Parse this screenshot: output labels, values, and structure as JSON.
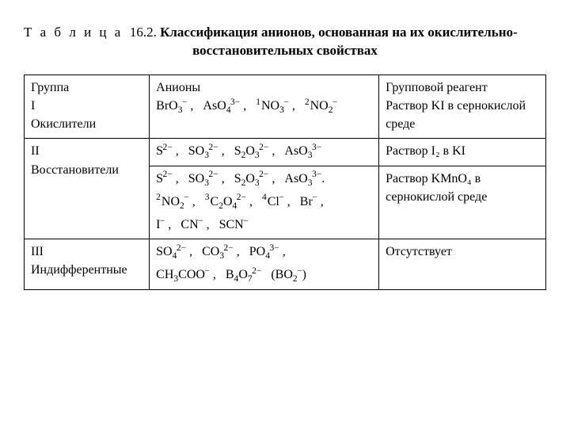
{
  "title": {
    "prefix": "Т а б л и ц а",
    "number": "16.2.",
    "main1": "Классификация анионов, основанная на их окислительно-",
    "main2": "восстановительных свойствах"
  },
  "header": {
    "col1": "Группа",
    "col2": "Анионы",
    "col3": "Групповой реагент"
  },
  "groups": {
    "g1": {
      "label1": "I",
      "label2": "Окислители",
      "reagent": "Раствор KI в сернокислой среде",
      "anions": [
        {
          "pre": "",
          "base": "BrO",
          "sub": "3",
          "sup": "−"
        },
        {
          "pre": "",
          "base": "AsO",
          "sub": "4",
          "sup": "3−"
        },
        {
          "pre": "1",
          "base": "NO",
          "sub": "3",
          "sup": "−"
        },
        {
          "pre": "2",
          "base": "NO",
          "sub": "2",
          "sup": "−"
        }
      ]
    },
    "g2a": {
      "label1": "II",
      "label2": "Восстановители",
      "reagent": "Раствор I₂  в KI",
      "anions": [
        {
          "pre": "",
          "base": "S",
          "sub": "",
          "sup": "2−"
        },
        {
          "pre": "",
          "base": "SO",
          "sub": "3",
          "sup": "2−"
        },
        {
          "pre": "",
          "base": "S",
          "sub": "2",
          "mid": "O",
          "sub2": "3",
          "sup": "2−"
        },
        {
          "pre": "",
          "base": "AsO",
          "sub": "3",
          "sup": "3−"
        }
      ]
    },
    "g2b": {
      "reagent": "Раствор  KMnO₄ в сернокислой среде",
      "line1": [
        {
          "pre": "",
          "base": "S",
          "sub": "",
          "sup": "2−"
        },
        {
          "pre": "",
          "base": "SO",
          "sub": "3",
          "sup": "2−"
        },
        {
          "pre": "",
          "base": "S",
          "sub": "2",
          "mid": "O",
          "sub2": "3",
          "sup": "2−"
        },
        {
          "pre": "",
          "base": "AsO",
          "sub": "3",
          "sup": "3−"
        }
      ],
      "line2": [
        {
          "pre": "2",
          "base": "NO",
          "sub": "2",
          "sup": "−"
        },
        {
          "pre": "3",
          "base": "C",
          "sub": "2",
          "mid": "O",
          "sub2": "4",
          "sup": "2−"
        },
        {
          "pre": "4",
          "base": "Cl",
          "sub": "",
          "sup": "−"
        },
        {
          "pre": "",
          "base": "Br",
          "sub": "",
          "sup": "−"
        }
      ],
      "line3": [
        {
          "pre": "",
          "base": "I",
          "sub": "",
          "sup": "−"
        },
        {
          "pre": "",
          "base": "CN",
          "sub": "",
          "sup": "−"
        },
        {
          "pre": "",
          "base": "SCN",
          "sub": "",
          "sup": "−"
        }
      ]
    },
    "g3": {
      "label1": "III",
      "label2": "Индифферентные",
      "reagent": "Отсутствует",
      "line1": [
        {
          "pre": "",
          "base": "SO",
          "sub": "4",
          "sup": "2−"
        },
        {
          "pre": "",
          "base": "CO",
          "sub": "3",
          "sup": "2−"
        },
        {
          "pre": "",
          "base": "PO",
          "sub": "4",
          "sup": "3−"
        }
      ],
      "line2": [
        {
          "pre": "",
          "base": "CH",
          "sub": "3",
          "mid": "COO",
          "sub2": "",
          "sup": "−"
        },
        {
          "pre": "",
          "base": "B",
          "sub": "4",
          "mid": "O",
          "sub2": "7",
          "sup": "2−"
        }
      ],
      "paren": {
        "base": "BO",
        "sub": "2",
        "sup": "−"
      }
    }
  }
}
